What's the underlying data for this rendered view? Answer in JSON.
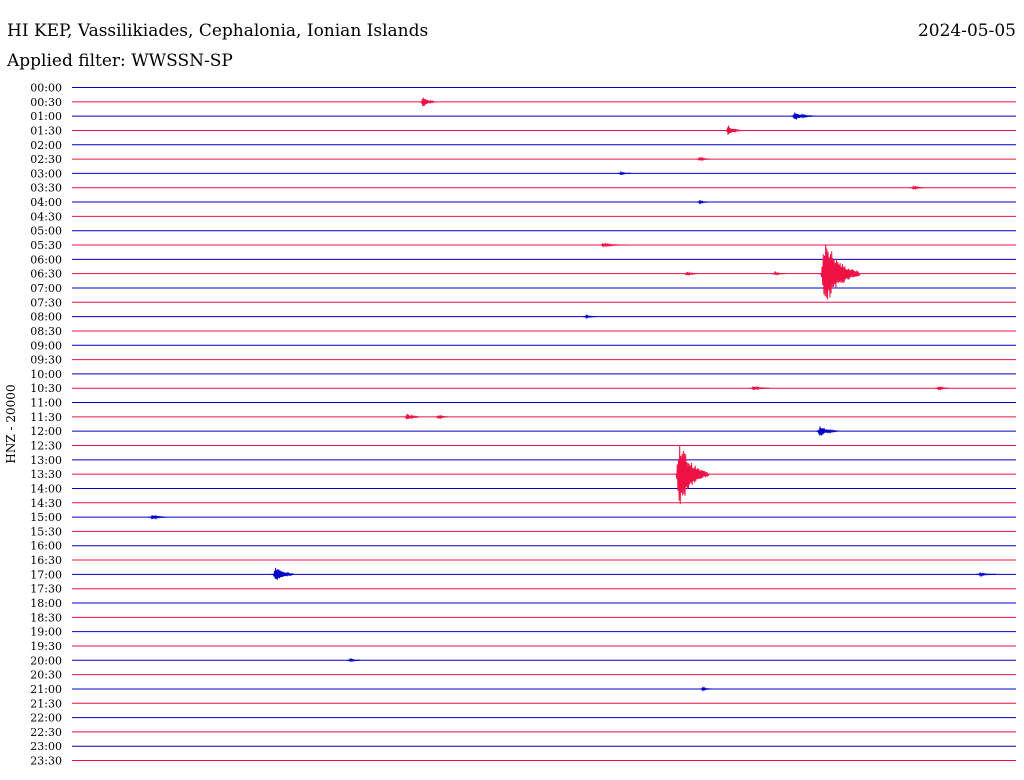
{
  "header": {
    "station": "HI KEP, Vassilikiades, Cephalonia, Ionian Islands",
    "date": "2024-05-05",
    "filter": "Applied filter: WWSSN-SP"
  },
  "colors": {
    "blue": "#0000cc",
    "red": "#ee1144",
    "text": "#000000"
  },
  "chart_data": {
    "type": "line",
    "title": "HI KEP, Vassilikiades, Cephalonia, Ionian Islands",
    "ylabel": "HNZ - 20000",
    "xlabel": "",
    "row_labels": [
      "00:00",
      "00:30",
      "01:00",
      "01:30",
      "02:00",
      "02:30",
      "03:00",
      "03:30",
      "04:00",
      "04:30",
      "05:00",
      "05:30",
      "06:00",
      "06:30",
      "07:00",
      "07:30",
      "08:00",
      "08:30",
      "09:00",
      "09:30",
      "10:00",
      "10:30",
      "11:00",
      "11:30",
      "12:00",
      "12:30",
      "13:00",
      "13:30",
      "14:00",
      "14:30",
      "15:00",
      "15:30",
      "16:00",
      "16:30",
      "17:00",
      "17:30",
      "18:00",
      "18:30",
      "19:00",
      "19:30",
      "20:00",
      "20:30",
      "21:00",
      "21:30",
      "22:00",
      "22:30",
      "23:00",
      "23:30"
    ],
    "row_colors": [
      "blue",
      "red"
    ],
    "events": [
      {
        "row": "00:30",
        "minute": 11.1,
        "amplitude": 0.45,
        "duration": 0.4
      },
      {
        "row": "01:00",
        "minute": 22.9,
        "amplitude": 0.3,
        "duration": 0.6
      },
      {
        "row": "01:30",
        "minute": 20.8,
        "amplitude": 0.4,
        "duration": 0.4
      },
      {
        "row": "02:30",
        "minute": 19.9,
        "amplitude": 0.15,
        "duration": 0.3
      },
      {
        "row": "03:00",
        "minute": 17.4,
        "amplitude": 0.1,
        "duration": 0.3
      },
      {
        "row": "03:30",
        "minute": 26.7,
        "amplitude": 0.15,
        "duration": 0.3
      },
      {
        "row": "04:00",
        "minute": 19.9,
        "amplitude": 0.1,
        "duration": 0.3
      },
      {
        "row": "05:30",
        "minute": 16.8,
        "amplitude": 0.1,
        "duration": 0.8
      },
      {
        "row": "06:30",
        "minute": 23.8,
        "amplitude": 2.7,
        "duration": 1.2
      },
      {
        "row": "06:30",
        "minute": 19.5,
        "amplitude": 0.15,
        "duration": 0.3
      },
      {
        "row": "06:30",
        "minute": 22.3,
        "amplitude": 0.12,
        "duration": 0.3
      },
      {
        "row": "08:00",
        "minute": 16.3,
        "amplitude": 0.1,
        "duration": 0.3
      },
      {
        "row": "10:30",
        "minute": 21.6,
        "amplitude": 0.15,
        "duration": 0.5
      },
      {
        "row": "10:30",
        "minute": 27.5,
        "amplitude": 0.15,
        "duration": 0.3
      },
      {
        "row": "11:30",
        "minute": 10.6,
        "amplitude": 0.25,
        "duration": 0.4
      },
      {
        "row": "11:30",
        "minute": 11.6,
        "amplitude": 0.15,
        "duration": 0.3
      },
      {
        "row": "12:00",
        "minute": 23.7,
        "amplitude": 0.4,
        "duration": 0.6
      },
      {
        "row": "13:30",
        "minute": 19.2,
        "amplitude": 2.5,
        "duration": 1.0
      },
      {
        "row": "15:00",
        "minute": 2.5,
        "amplitude": 0.2,
        "duration": 0.4
      },
      {
        "row": "17:00",
        "minute": 6.4,
        "amplitude": 0.6,
        "duration": 0.6
      },
      {
        "row": "17:00",
        "minute": 28.8,
        "amplitude": 0.1,
        "duration": 0.5
      },
      {
        "row": "20:00",
        "minute": 8.8,
        "amplitude": 0.1,
        "duration": 0.3
      },
      {
        "row": "21:00",
        "minute": 20.0,
        "amplitude": 0.1,
        "duration": 0.3
      }
    ]
  }
}
